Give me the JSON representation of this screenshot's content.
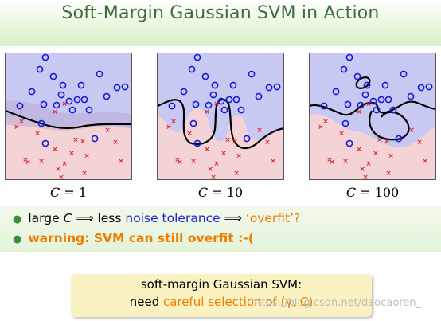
{
  "title": "Soft-Margin Gaussian SVM in Action",
  "panels": [
    {
      "c_var": "C",
      "c_value": "= 1"
    },
    {
      "c_var": "C",
      "c_value": "= 10"
    },
    {
      "c_var": "C",
      "c_value": "= 100"
    }
  ],
  "bullets": {
    "b1_pre": "large ",
    "b1_var": "C",
    "b1_arrow1": " ⟹ less ",
    "b1_blue": "noise tolerance",
    "b1_arrow2": " ⟹ ",
    "b1_orange": "‘overfit’?",
    "b2": "warning: SVM can still overfit :-("
  },
  "box": {
    "line1": "soft-margin Gaussian SVM:",
    "line2_pre": "need ",
    "line2_orange": "careful selection of (γ, C)"
  },
  "watermark": "https://blog.csdn.net/daocaoren_",
  "colors": {
    "circle": "#1a1adb",
    "cross": "#e0202a",
    "blue_region": "#c7c9f2",
    "red_region": "#f3d3d5",
    "title": "#3f6c3a"
  }
}
